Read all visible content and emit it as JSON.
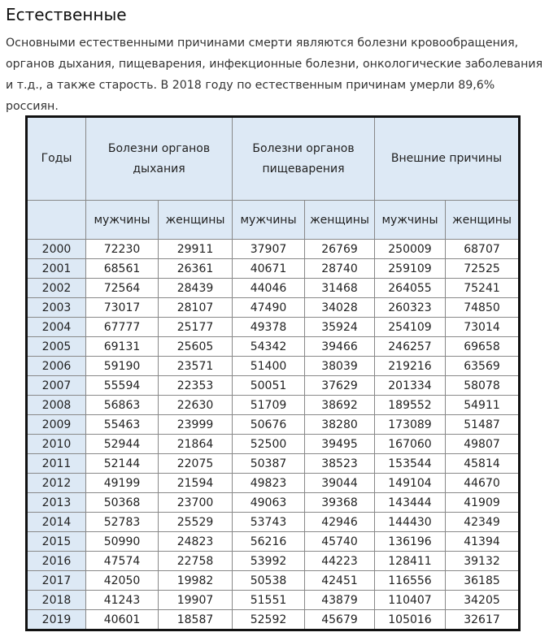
{
  "title": "Естественные",
  "intro": "Основными естественными причинами смерти являются болезни кровообращения, органов дыхания, пищеварения, инфекционные болезни, онкологические заболевания и т.д., а также старость. В 2018 году по естественным причинам умерли 89,6% россиян.",
  "table": {
    "year_header": "Годы",
    "groups": [
      "Болезни органов дыхания",
      "Болезни органов пищеварения",
      "Внешние причины"
    ],
    "sub": [
      "мужчины",
      "женщины",
      "мужчины",
      "женщины",
      "мужчины",
      "женщины"
    ],
    "rows": [
      [
        "2000",
        "72230",
        "29911",
        "37907",
        "26769",
        "250009",
        "68707"
      ],
      [
        "2001",
        "68561",
        "26361",
        "40671",
        "28740",
        "259109",
        "72525"
      ],
      [
        "2002",
        "72564",
        "28439",
        "44046",
        "31468",
        "264055",
        "75241"
      ],
      [
        "2003",
        "73017",
        "28107",
        "47490",
        "34028",
        "260323",
        "74850"
      ],
      [
        "2004",
        "67777",
        "25177",
        "49378",
        "35924",
        "254109",
        "73014"
      ],
      [
        "2005",
        "69131",
        "25605",
        "54342",
        "39466",
        "246257",
        "69658"
      ],
      [
        "2006",
        "59190",
        "23571",
        "51400",
        "38039",
        "219216",
        "63569"
      ],
      [
        "2007",
        "55594",
        "22353",
        "50051",
        "37629",
        "201334",
        "58078"
      ],
      [
        "2008",
        "56863",
        "22630",
        "51709",
        "38692",
        "189552",
        "54911"
      ],
      [
        "2009",
        "55463",
        "23999",
        "50676",
        "38280",
        "173089",
        "51487"
      ],
      [
        "2010",
        "52944",
        "21864",
        "52500",
        "39495",
        "167060",
        "49807"
      ],
      [
        "2011",
        "52144",
        "22075",
        "50387",
        "38523",
        "153544",
        "45814"
      ],
      [
        "2012",
        "49199",
        "21594",
        "49823",
        "39044",
        "149104",
        "44670"
      ],
      [
        "2013",
        "50368",
        "23700",
        "49063",
        "39368",
        "143444",
        "41909"
      ],
      [
        "2014",
        "52783",
        "25529",
        "53743",
        "42946",
        "144430",
        "42349"
      ],
      [
        "2015",
        "50990",
        "24823",
        "56216",
        "45740",
        "136196",
        "41394"
      ],
      [
        "2016",
        "47574",
        "22758",
        "53992",
        "44223",
        "128411",
        "39132"
      ],
      [
        "2017",
        "42050",
        "19982",
        "50538",
        "42451",
        "116556",
        "36185"
      ],
      [
        "2018",
        "41243",
        "19907",
        "51551",
        "43879",
        "110407",
        "34205"
      ],
      [
        "2019",
        "40601",
        "18587",
        "52592",
        "45679",
        "105016",
        "32617"
      ]
    ]
  }
}
